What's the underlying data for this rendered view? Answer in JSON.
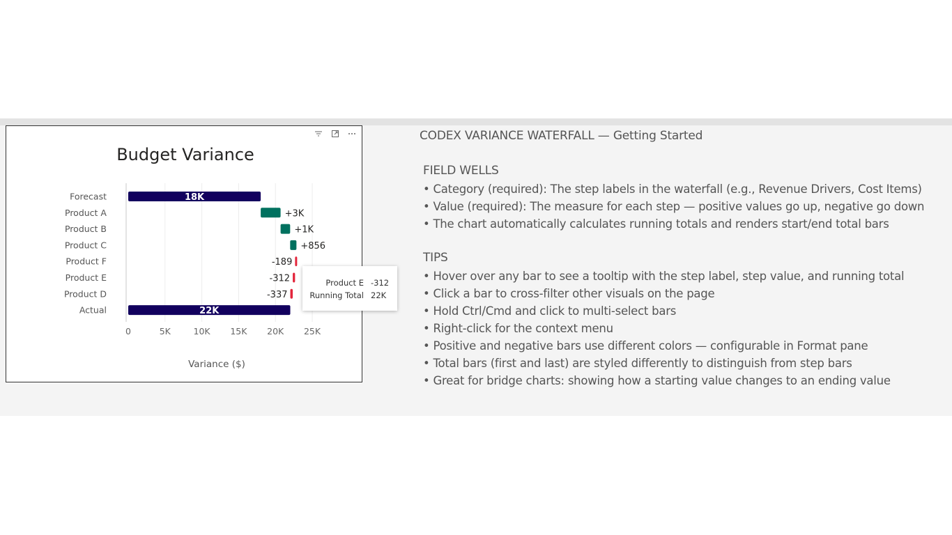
{
  "visual": {
    "toolbar": {
      "filter_icon": "filter-icon",
      "focus_icon": "focus-mode-icon",
      "more_icon": "more-options-icon"
    }
  },
  "chart_data": {
    "type": "bar",
    "subtype": "waterfall",
    "orientation": "horizontal",
    "title": "Budget Variance",
    "xlabel": "Variance ($)",
    "ylabel": "",
    "xlim": [
      0,
      25000
    ],
    "xticks": [
      0,
      5000,
      10000,
      15000,
      20000,
      25000
    ],
    "xtick_labels": [
      "0",
      "5K",
      "10K",
      "15K",
      "20K",
      "25K"
    ],
    "grid": true,
    "categories": [
      "Forecast",
      "Product A",
      "Product B",
      "Product C",
      "Product F",
      "Product E",
      "Product D",
      "Actual"
    ],
    "steps": [
      {
        "label": "Forecast",
        "kind": "total",
        "value": 18000,
        "data_label": "18K"
      },
      {
        "label": "Product A",
        "kind": "increase",
        "value": 2700,
        "data_label": "+3K"
      },
      {
        "label": "Product B",
        "kind": "increase",
        "value": 1300,
        "data_label": "+1K"
      },
      {
        "label": "Product C",
        "kind": "increase",
        "value": 856,
        "data_label": "+856"
      },
      {
        "label": "Product F",
        "kind": "decrease",
        "value": -189,
        "data_label": "-189"
      },
      {
        "label": "Product E",
        "kind": "decrease",
        "value": -312,
        "data_label": "-312"
      },
      {
        "label": "Product D",
        "kind": "decrease",
        "value": -337,
        "data_label": "-337"
      },
      {
        "label": "Actual",
        "kind": "total",
        "value": 22018,
        "data_label": "22K"
      }
    ],
    "colors": {
      "total": "#12005e",
      "increase": "#00715f",
      "decrease": "#e3263c",
      "grid": "#ececec",
      "axis": "#c8c8c8"
    },
    "tooltip": {
      "rows": [
        {
          "key": "Product E",
          "value": "-312"
        },
        {
          "key": "Running Total",
          "value": "22K"
        }
      ]
    }
  },
  "guide": {
    "title": "CODEX VARIANCE WATERFALL — Getting Started",
    "sections": [
      {
        "heading": "FIELD WELLS",
        "items": [
          "• Category (required): The step labels in the waterfall (e.g., Revenue Drivers, Cost Items)",
          "• Value (required): The measure for each step — positive values go up, negative go down",
          "• The chart automatically calculates running totals and renders start/end total bars"
        ]
      },
      {
        "heading": "TIPS",
        "items": [
          "• Hover over any bar to see a tooltip with the step label, step value, and running total",
          "• Click a bar to cross-filter other visuals on the page",
          "• Hold Ctrl/Cmd and click to multi-select bars",
          "• Right-click for the context menu",
          "• Positive and negative bars use different colors — configurable in Format pane",
          "• Total bars (first and last) are styled differently to distinguish from step bars",
          "• Great for bridge charts: showing how a starting value changes to an ending value"
        ]
      }
    ]
  }
}
